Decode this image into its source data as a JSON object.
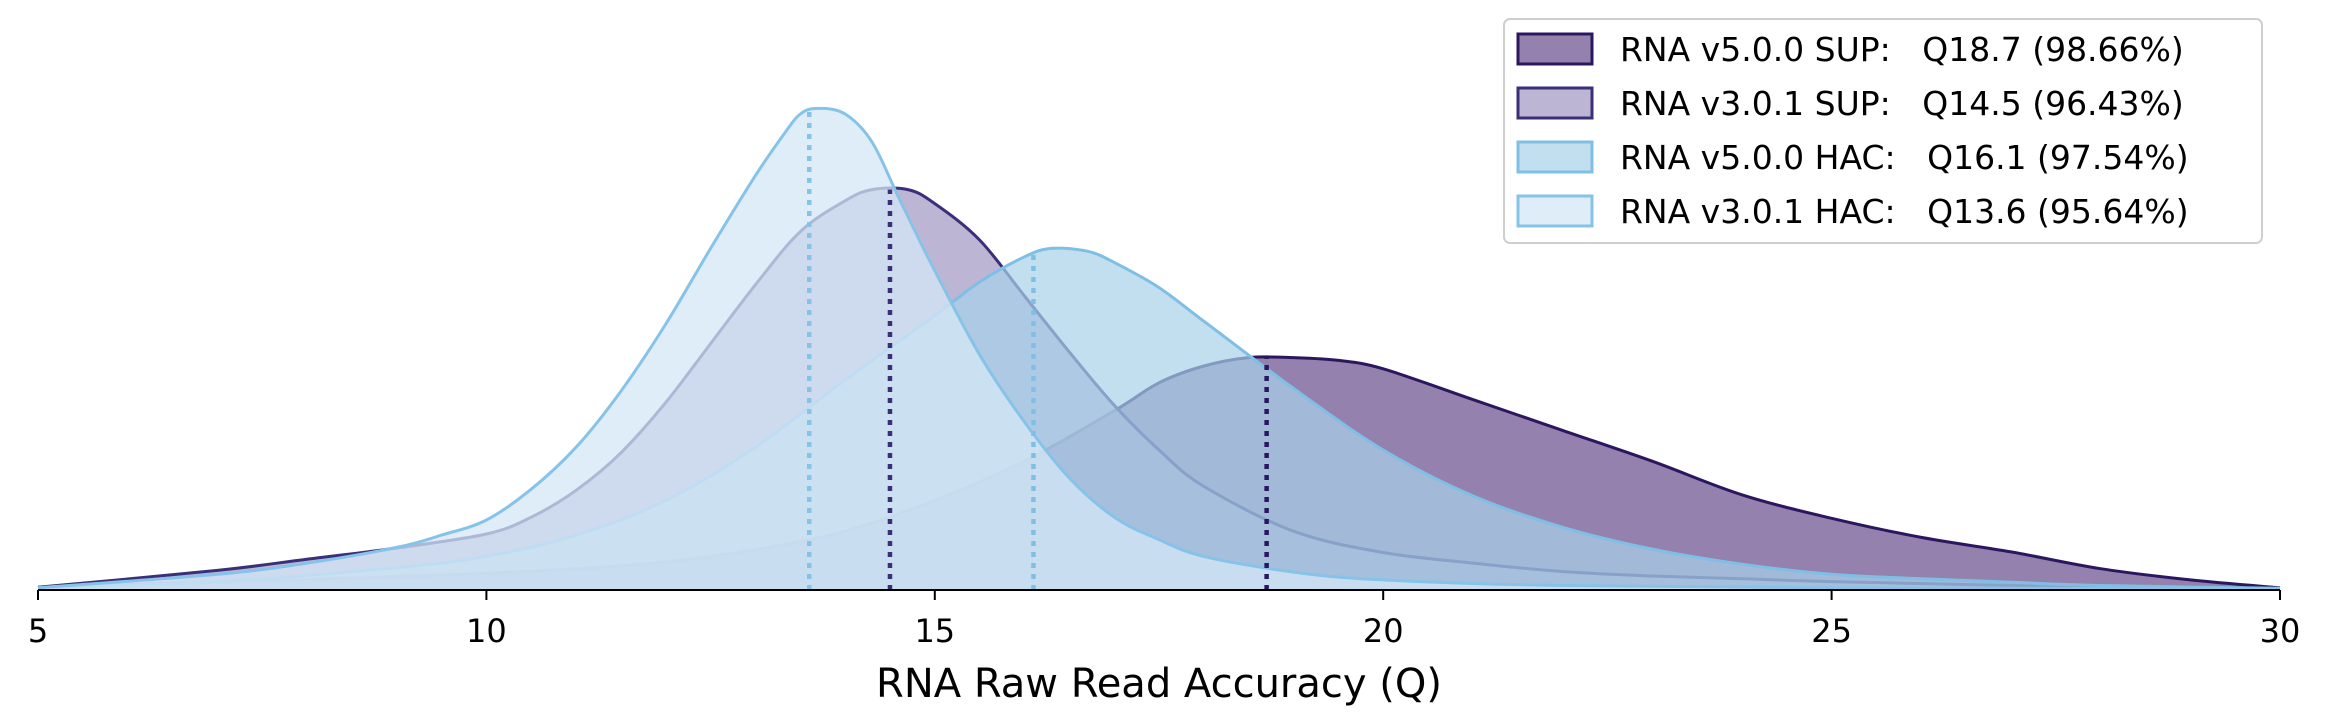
{
  "chart_data": {
    "type": "area",
    "title": "",
    "xlabel": "RNA Raw Read Accuracy (Q)",
    "ylabel": "",
    "xlim": [
      5,
      30
    ],
    "ylim": [
      0,
      1.0
    ],
    "xticks": [
      5,
      10,
      15,
      20,
      25,
      30
    ],
    "yaxis_visible": false,
    "grid": false,
    "legend_position": "top-right",
    "series": [
      {
        "name": "RNA v5.0.0 SUP:   Q18.7 (98.66%)",
        "fill": "#7b6299",
        "fill_opacity": 0.8,
        "stroke": "#2a1760",
        "median": 18.7,
        "points": [
          [
            5,
            0.005
          ],
          [
            7,
            0.014
          ],
          [
            9,
            0.024
          ],
          [
            10,
            0.03
          ],
          [
            11,
            0.038
          ],
          [
            12,
            0.05
          ],
          [
            13,
            0.072
          ],
          [
            14,
            0.105
          ],
          [
            15,
            0.16
          ],
          [
            16,
            0.23
          ],
          [
            17,
            0.32
          ],
          [
            17.5,
            0.37
          ],
          [
            18,
            0.4
          ],
          [
            18.5,
            0.415
          ],
          [
            19,
            0.415
          ],
          [
            19.5,
            0.41
          ],
          [
            20,
            0.395
          ],
          [
            21,
            0.34
          ],
          [
            22,
            0.285
          ],
          [
            23,
            0.23
          ],
          [
            24,
            0.17
          ],
          [
            25,
            0.128
          ],
          [
            26,
            0.094
          ],
          [
            27,
            0.068
          ],
          [
            28,
            0.038
          ],
          [
            29,
            0.018
          ],
          [
            30,
            0.004
          ]
        ]
      },
      {
        "name": "RNA v3.0.1 SUP:   Q14.5 (96.43%)",
        "fill": "#a79cc5",
        "fill_opacity": 0.75,
        "stroke": "#3b2f7a",
        "median": 14.5,
        "points": [
          [
            5,
            0.005
          ],
          [
            7,
            0.035
          ],
          [
            8,
            0.055
          ],
          [
            9,
            0.075
          ],
          [
            10,
            0.1
          ],
          [
            10.5,
            0.13
          ],
          [
            11,
            0.178
          ],
          [
            11.5,
            0.245
          ],
          [
            12,
            0.335
          ],
          [
            12.5,
            0.44
          ],
          [
            13,
            0.545
          ],
          [
            13.5,
            0.64
          ],
          [
            14,
            0.695
          ],
          [
            14.3,
            0.715
          ],
          [
            14.7,
            0.715
          ],
          [
            15,
            0.69
          ],
          [
            15.5,
            0.625
          ],
          [
            16,
            0.525
          ],
          [
            16.5,
            0.425
          ],
          [
            17,
            0.33
          ],
          [
            17.5,
            0.25
          ],
          [
            18,
            0.185
          ],
          [
            19,
            0.105
          ],
          [
            20,
            0.067
          ],
          [
            21,
            0.048
          ],
          [
            22,
            0.033
          ],
          [
            23,
            0.025
          ],
          [
            24,
            0.02
          ],
          [
            25,
            0.015
          ],
          [
            27,
            0.008
          ],
          [
            30,
            0.003
          ]
        ]
      },
      {
        "name": "RNA v5.0.0 HAC:   Q16.1 (97.54%)",
        "fill": "#a8d1ea",
        "fill_opacity": 0.7,
        "stroke": "#7fbfe6",
        "median": 16.1,
        "points": [
          [
            5,
            0.004
          ],
          [
            7,
            0.015
          ],
          [
            9,
            0.04
          ],
          [
            10,
            0.06
          ],
          [
            11,
            0.098
          ],
          [
            12,
            0.16
          ],
          [
            13,
            0.255
          ],
          [
            14,
            0.375
          ],
          [
            15,
            0.49
          ],
          [
            15.5,
            0.55
          ],
          [
            16,
            0.595
          ],
          [
            16.3,
            0.61
          ],
          [
            16.7,
            0.605
          ],
          [
            17,
            0.585
          ],
          [
            17.5,
            0.54
          ],
          [
            18,
            0.48
          ],
          [
            19,
            0.36
          ],
          [
            20,
            0.25
          ],
          [
            21,
            0.168
          ],
          [
            22,
            0.112
          ],
          [
            23,
            0.073
          ],
          [
            24,
            0.046
          ],
          [
            25,
            0.028
          ],
          [
            26,
            0.02
          ],
          [
            27,
            0.014
          ],
          [
            28,
            0.008
          ],
          [
            30,
            0.003
          ]
        ]
      },
      {
        "name": "RNA v3.0.1 HAC:   Q13.6 (95.64%)",
        "fill": "#d4e7f6",
        "fill_opacity": 0.75,
        "stroke": "#86c3e9",
        "median": 13.6,
        "points": [
          [
            5,
            0.004
          ],
          [
            7,
            0.028
          ],
          [
            8,
            0.048
          ],
          [
            9,
            0.076
          ],
          [
            9.5,
            0.098
          ],
          [
            10,
            0.125
          ],
          [
            10.5,
            0.18
          ],
          [
            11,
            0.255
          ],
          [
            11.5,
            0.355
          ],
          [
            12,
            0.475
          ],
          [
            12.5,
            0.61
          ],
          [
            13,
            0.74
          ],
          [
            13.3,
            0.81
          ],
          [
            13.5,
            0.85
          ],
          [
            13.7,
            0.86
          ],
          [
            14,
            0.85
          ],
          [
            14.3,
            0.8
          ],
          [
            14.6,
            0.7
          ],
          [
            15,
            0.57
          ],
          [
            15.5,
            0.42
          ],
          [
            16,
            0.3
          ],
          [
            16.5,
            0.2
          ],
          [
            17,
            0.13
          ],
          [
            17.5,
            0.09
          ],
          [
            18,
            0.06
          ],
          [
            19,
            0.032
          ],
          [
            20,
            0.018
          ],
          [
            22,
            0.008
          ],
          [
            25,
            0.004
          ],
          [
            30,
            0.002
          ]
        ]
      }
    ]
  }
}
